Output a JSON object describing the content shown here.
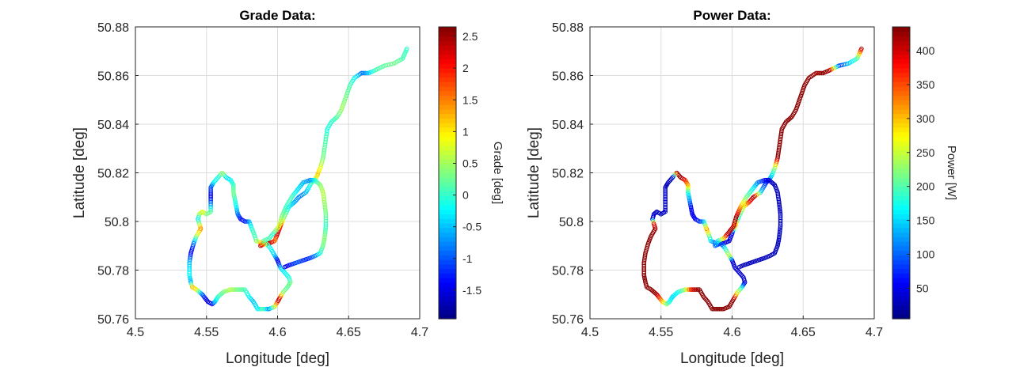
{
  "chart_data": [
    {
      "type": "scatter",
      "title": "Grade Data:",
      "xlabel": "Longitude [deg]",
      "ylabel": "Latitude [deg]",
      "xlim": [
        4.5,
        4.7
      ],
      "ylim": [
        50.76,
        50.88
      ],
      "xticks": [
        "4.5",
        "4.55",
        "4.6",
        "4.65",
        "4.7"
      ],
      "yticks": [
        "50.76",
        "50.78",
        "50.8",
        "50.82",
        "50.84",
        "50.86",
        "50.88"
      ],
      "grid": true,
      "colormap": "jet",
      "colorbar": {
        "label": "Grade [deg]",
        "range": [
          -1.95,
          2.65
        ],
        "ticks": [
          "-1.5",
          "-1",
          "-0.5",
          "0",
          "0.5",
          "1",
          "1.5",
          "2",
          "2.5"
        ]
      },
      "route": [
        [
          4.691,
          50.871
        ],
        [
          4.688,
          50.867
        ],
        [
          4.682,
          50.865
        ],
        [
          4.675,
          50.864
        ],
        [
          4.668,
          50.862
        ],
        [
          4.664,
          50.861
        ],
        [
          4.659,
          50.861
        ],
        [
          4.654,
          50.859
        ],
        [
          4.651,
          50.856
        ],
        [
          4.648,
          50.851
        ],
        [
          4.645,
          50.846
        ],
        [
          4.642,
          50.843
        ],
        [
          4.638,
          50.841
        ],
        [
          4.635,
          50.838
        ],
        [
          4.634,
          50.834
        ],
        [
          4.633,
          50.83
        ],
        [
          4.632,
          50.826
        ],
        [
          4.63,
          50.822
        ],
        [
          4.628,
          50.819
        ],
        [
          4.626,
          50.817
        ],
        [
          4.624,
          50.816
        ],
        [
          4.62,
          50.812
        ],
        [
          4.615,
          50.81
        ],
        [
          4.612,
          50.808
        ],
        [
          4.608,
          50.806
        ],
        [
          4.604,
          50.801
        ],
        [
          4.602,
          50.798
        ],
        [
          4.6,
          50.795
        ],
        [
          4.598,
          50.792
        ],
        [
          4.594,
          50.791
        ],
        [
          4.589,
          50.791
        ],
        [
          4.585,
          50.792
        ],
        [
          4.584,
          50.794
        ],
        [
          4.582,
          50.797
        ],
        [
          4.58,
          50.8
        ],
        [
          4.577,
          50.8
        ],
        [
          4.574,
          50.801
        ],
        [
          4.572,
          50.803
        ],
        [
          4.571,
          50.806
        ],
        [
          4.57,
          50.809
        ],
        [
          4.569,
          50.812
        ],
        [
          4.569,
          50.815
        ],
        [
          4.567,
          50.817
        ],
        [
          4.564,
          50.818
        ],
        [
          4.561,
          50.82
        ],
        [
          4.558,
          50.818
        ],
        [
          4.555,
          50.816
        ],
        [
          4.553,
          50.814
        ],
        [
          4.553,
          50.81
        ],
        [
          4.553,
          50.806
        ],
        [
          4.553,
          50.804
        ],
        [
          4.55,
          50.803
        ],
        [
          4.547,
          50.804
        ],
        [
          4.545,
          50.803
        ],
        [
          4.544,
          50.801
        ],
        [
          4.545,
          50.799
        ],
        [
          4.546,
          50.797
        ],
        [
          4.543,
          50.794
        ],
        [
          4.541,
          50.791
        ],
        [
          4.539,
          50.787
        ],
        [
          4.538,
          50.783
        ],
        [
          4.538,
          50.778
        ],
        [
          4.539,
          50.775
        ],
        [
          4.54,
          50.773
        ],
        [
          4.543,
          50.772
        ],
        [
          4.547,
          50.77
        ],
        [
          4.551,
          50.767
        ],
        [
          4.554,
          50.766
        ],
        [
          4.556,
          50.767
        ],
        [
          4.558,
          50.769
        ],
        [
          4.562,
          50.771
        ],
        [
          4.567,
          50.772
        ],
        [
          4.572,
          50.772
        ],
        [
          4.577,
          50.772
        ],
        [
          4.58,
          50.769
        ],
        [
          4.583,
          50.767
        ],
        [
          4.586,
          50.764
        ],
        [
          4.59,
          50.764
        ],
        [
          4.594,
          50.764
        ],
        [
          4.598,
          50.765
        ],
        [
          4.601,
          50.768
        ],
        [
          4.604,
          50.771
        ],
        [
          4.607,
          50.773
        ],
        [
          4.609,
          50.775
        ],
        [
          4.608,
          50.777
        ],
        [
          4.605,
          50.779
        ],
        [
          4.602,
          50.781
        ],
        [
          4.6,
          50.784
        ],
        [
          4.598,
          50.786
        ],
        [
          4.595,
          50.789
        ],
        [
          4.592,
          50.791
        ],
        [
          4.588,
          50.79
        ],
        [
          4.59,
          50.792
        ],
        [
          4.594,
          50.793
        ],
        [
          4.597,
          50.795
        ],
        [
          4.601,
          50.798
        ],
        [
          4.603,
          50.802
        ],
        [
          4.606,
          50.806
        ],
        [
          4.61,
          50.81
        ],
        [
          4.614,
          50.813
        ],
        [
          4.618,
          50.816
        ],
        [
          4.623,
          50.817
        ],
        [
          4.626,
          50.817
        ],
        [
          4.63,
          50.815
        ],
        [
          4.632,
          50.812
        ],
        [
          4.633,
          50.808
        ],
        [
          4.634,
          50.803
        ],
        [
          4.634,
          50.798
        ],
        [
          4.633,
          50.793
        ],
        [
          4.632,
          50.79
        ],
        [
          4.63,
          50.787
        ],
        [
          4.627,
          50.786
        ],
        [
          4.623,
          50.785
        ],
        [
          4.618,
          50.784
        ],
        [
          4.613,
          50.783
        ],
        [
          4.608,
          50.782
        ],
        [
          4.604,
          50.781
        ]
      ],
      "values": [
        0.0,
        0.1,
        0.3,
        0.2,
        0.1,
        -0.4,
        -0.9,
        -0.2,
        0.1,
        0.3,
        0.5,
        0.2,
        0.0,
        -0.1,
        0.1,
        0.2,
        0.3,
        0.8,
        1.2,
        0.4,
        0.1,
        -0.5,
        -0.8,
        -0.6,
        -0.3,
        0.5,
        1.8,
        2.4,
        1.5,
        2.5,
        1.8,
        0.4,
        0.1,
        0.0,
        -0.5,
        -1.2,
        -1.4,
        -0.9,
        -0.3,
        0.0,
        0.3,
        0.1,
        -0.2,
        -0.4,
        0.5,
        -0.1,
        -0.2,
        -1.0,
        -1.5,
        -0.5,
        0.2,
        0.3,
        0.8,
        0.6,
        -0.3,
        0.4,
        1.5,
        0.6,
        -0.8,
        -1.5,
        -0.5,
        -0.2,
        -0.6,
        1.2,
        1.0,
        -0.9,
        -1.6,
        -1.4,
        -0.5,
        0.0,
        0.3,
        0.6,
        0.3,
        0.1,
        -0.2,
        -0.5,
        -0.3,
        0.2,
        -0.8,
        0.6,
        2.5,
        0.4,
        0.2,
        0.3,
        -0.1,
        -0.2,
        -0.4,
        -1.6,
        -0.5,
        -0.2,
        0.1,
        2.5,
        0.2,
        0.1,
        0.0,
        0.8,
        0.4,
        0.0,
        0.1,
        -0.3,
        -0.5,
        -0.8,
        -0.2,
        0.4,
        0.6,
        0.5,
        0.3,
        0.0,
        0.4,
        0.3,
        0.0,
        -0.6,
        -1.1,
        -1.2,
        -1.0,
        -1.3,
        -1.5
      ]
    },
    {
      "type": "scatter",
      "title": "Power Data:",
      "xlabel": "Longitude [deg]",
      "ylabel": "Latitude [deg]",
      "xlim": [
        4.5,
        4.7
      ],
      "ylim": [
        50.76,
        50.88
      ],
      "xticks": [
        "4.5",
        "4.55",
        "4.6",
        "4.65",
        "4.7"
      ],
      "yticks": [
        "50.76",
        "50.78",
        "50.8",
        "50.82",
        "50.84",
        "50.86",
        "50.88"
      ],
      "grid": true,
      "colormap": "jet",
      "colorbar": {
        "label": "Power [W]",
        "range": [
          5,
          435
        ],
        "ticks": [
          "50",
          "100",
          "150",
          "200",
          "250",
          "300",
          "350",
          "400"
        ]
      },
      "values": [
        420,
        200,
        150,
        80,
        420,
        430,
        420,
        430,
        430,
        430,
        430,
        430,
        430,
        430,
        430,
        430,
        430,
        240,
        160,
        120,
        60,
        150,
        420,
        380,
        260,
        180,
        320,
        60,
        40,
        50,
        40,
        150,
        200,
        320,
        160,
        80,
        60,
        50,
        60,
        120,
        170,
        300,
        360,
        420,
        420,
        40,
        30,
        30,
        40,
        40,
        40,
        30,
        30,
        40,
        40,
        380,
        420,
        430,
        430,
        430,
        430,
        430,
        430,
        430,
        430,
        420,
        300,
        220,
        180,
        150,
        170,
        230,
        400,
        430,
        430,
        430,
        430,
        430,
        430,
        430,
        430,
        260,
        180,
        40,
        40,
        40,
        40,
        40,
        260,
        180,
        80,
        100,
        160,
        280,
        420,
        400,
        420,
        320,
        220,
        180,
        120,
        60,
        40,
        30,
        30,
        30,
        30,
        30,
        30,
        30,
        30,
        30,
        30,
        30,
        30,
        30,
        30
      ]
    }
  ]
}
